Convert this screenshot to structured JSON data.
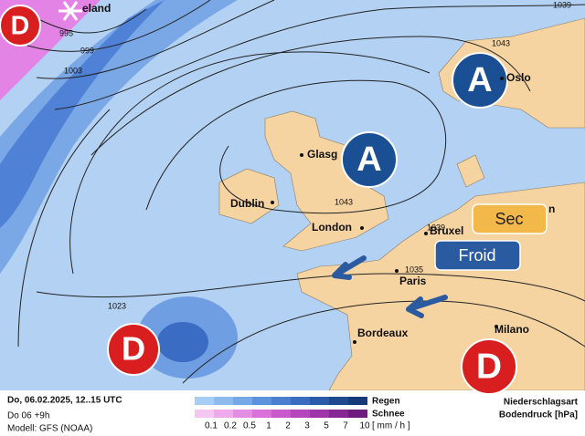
{
  "lows": [
    "D",
    "D",
    "D"
  ],
  "highs": [
    "A",
    "A"
  ],
  "cities": [
    "eland",
    "Oslo",
    "Glasg",
    "Dublin",
    "London",
    "Bruxel",
    "n",
    "Paris",
    "Bordeaux",
    "Milano"
  ],
  "isobars": [
    1039,
    995,
    999,
    1043,
    1003,
    1043,
    1023,
    1035,
    1039
  ],
  "labels": {
    "dry": "Sec",
    "cold": "Froid"
  },
  "footer": {
    "time": "Do, 06.02.2025, 12..15 UTC",
    "step": "Do 06 +9h",
    "model": "Modell: GFS (NOAA)",
    "type_title": "Niederschlagsart",
    "pressure_title": "Bodendruck [hPa]"
  },
  "legend": {
    "rain": "Regen",
    "snow": "Schnee",
    "unit": "[ mm / h ]",
    "ticks": [
      0.1,
      0.2,
      0.5,
      1,
      2,
      3,
      5,
      7,
      10
    ]
  }
}
